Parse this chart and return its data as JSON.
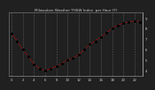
{
  "title": "Milwaukee Weather THSW Index  per Hour (F)",
  "hours": [
    0,
    1,
    2,
    3,
    4,
    5,
    6,
    7,
    8,
    9,
    10,
    11,
    12,
    13,
    14,
    15,
    16,
    17,
    18,
    19,
    20,
    21,
    22,
    23
  ],
  "values": [
    75,
    68,
    60,
    53,
    46,
    42,
    40,
    42,
    44,
    47,
    50,
    52,
    55,
    60,
    65,
    68,
    72,
    76,
    80,
    83,
    85,
    86,
    87,
    86
  ],
  "line_color": "#ff0000",
  "marker_color": "#000000",
  "bg_color": "#202020",
  "plot_bg_color": "#202020",
  "grid_color": "#666666",
  "title_color": "#cccccc",
  "tick_color": "#cccccc",
  "spine_color": "#888888",
  "ylim": [
    35,
    95
  ],
  "xlim": [
    -0.5,
    23.5
  ],
  "yticks": [
    40,
    50,
    60,
    70,
    80,
    90
  ],
  "ytick_labels": [
    "4",
    "5",
    "6",
    "7",
    "8",
    "9"
  ],
  "xtick_positions": [
    0,
    2,
    4,
    6,
    8,
    10,
    12,
    14,
    16,
    18,
    20,
    22
  ],
  "xtick_labels": [
    "0",
    "2",
    "4",
    "6",
    "8",
    "10",
    "12",
    "14",
    "16",
    "18",
    "20",
    "22"
  ],
  "vgrid_positions": [
    0,
    2,
    4,
    6,
    8,
    10,
    12,
    14,
    16,
    18,
    20,
    22
  ]
}
